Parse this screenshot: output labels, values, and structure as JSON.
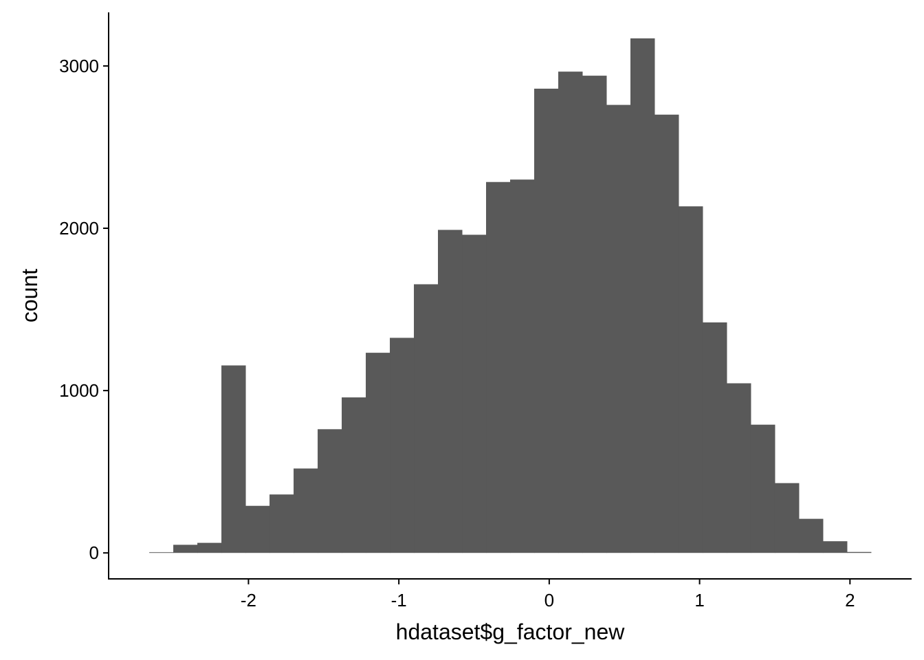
{
  "chart_data": {
    "type": "bar",
    "subtype": "histogram",
    "xlabel": "hdataset$g_factor_new",
    "ylabel": "count",
    "bin_width": 0.16,
    "bins": [
      {
        "x0": -2.66,
        "x1": -2.5,
        "count": 3
      },
      {
        "x0": -2.5,
        "x1": -2.34,
        "count": 50
      },
      {
        "x0": -2.34,
        "x1": -2.18,
        "count": 62
      },
      {
        "x0": -2.18,
        "x1": -2.02,
        "count": 1155
      },
      {
        "x0": -2.02,
        "x1": -1.86,
        "count": 290
      },
      {
        "x0": -1.86,
        "x1": -1.7,
        "count": 360
      },
      {
        "x0": -1.7,
        "x1": -1.54,
        "count": 520
      },
      {
        "x0": -1.54,
        "x1": -1.38,
        "count": 762
      },
      {
        "x0": -1.38,
        "x1": -1.22,
        "count": 958
      },
      {
        "x0": -1.22,
        "x1": -1.06,
        "count": 1233
      },
      {
        "x0": -1.06,
        "x1": -0.9,
        "count": 1325
      },
      {
        "x0": -0.9,
        "x1": -0.74,
        "count": 1655
      },
      {
        "x0": -0.74,
        "x1": -0.58,
        "count": 1990
      },
      {
        "x0": -0.58,
        "x1": -0.42,
        "count": 1960
      },
      {
        "x0": -0.42,
        "x1": -0.26,
        "count": 2285
      },
      {
        "x0": -0.26,
        "x1": -0.1,
        "count": 2300
      },
      {
        "x0": -0.1,
        "x1": 0.06,
        "count": 2860
      },
      {
        "x0": 0.06,
        "x1": 0.22,
        "count": 2965
      },
      {
        "x0": 0.22,
        "x1": 0.38,
        "count": 2940
      },
      {
        "x0": 0.38,
        "x1": 0.54,
        "count": 2760
      },
      {
        "x0": 0.54,
        "x1": 0.7,
        "count": 3170
      },
      {
        "x0": 0.7,
        "x1": 0.86,
        "count": 2700
      },
      {
        "x0": 0.86,
        "x1": 1.02,
        "count": 2135
      },
      {
        "x0": 1.02,
        "x1": 1.18,
        "count": 1420
      },
      {
        "x0": 1.18,
        "x1": 1.34,
        "count": 1045
      },
      {
        "x0": 1.34,
        "x1": 1.5,
        "count": 790
      },
      {
        "x0": 1.5,
        "x1": 1.66,
        "count": 430
      },
      {
        "x0": 1.66,
        "x1": 1.82,
        "count": 210
      },
      {
        "x0": 1.82,
        "x1": 1.98,
        "count": 72
      },
      {
        "x0": 1.98,
        "x1": 2.14,
        "count": 6
      }
    ],
    "xlim": [
      -2.93,
      2.41
    ],
    "ylim": [
      -160,
      3330
    ],
    "xticks": [
      -2,
      -1,
      0,
      1,
      2
    ],
    "xtick_labels": [
      "-2",
      "-1",
      "0",
      "1",
      "2"
    ],
    "yticks": [
      0,
      1000,
      2000,
      3000
    ],
    "ytick_labels": [
      "0",
      "1000",
      "2000",
      "3000"
    ],
    "bar_color": "#595959",
    "grid": false,
    "legend": "none"
  }
}
